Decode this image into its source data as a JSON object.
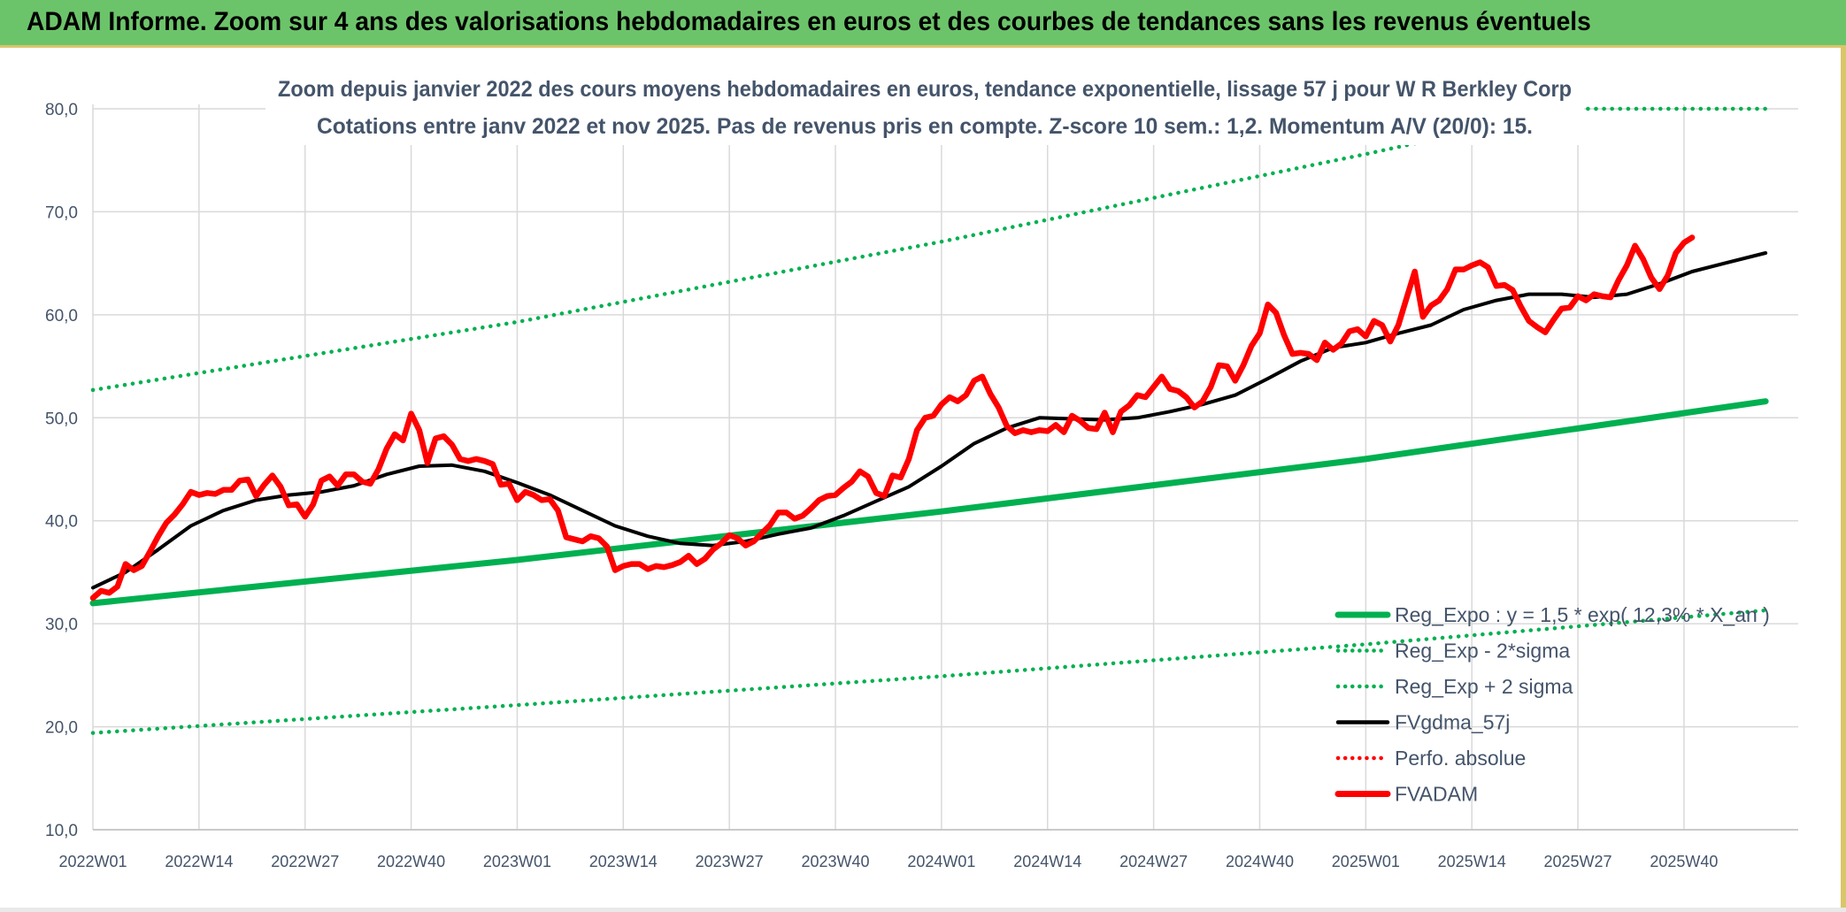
{
  "title": "ADAM Informe. Zoom sur 4 ans des valorisations hebdomadaires en euros et des courbes de tendances sans les revenus éventuels",
  "colors": {
    "banner": "#6cc46a",
    "green": "#00b050",
    "red": "#ff0000",
    "black": "#000000",
    "axis_text": "#44546a",
    "grid": "#d9d9d9"
  },
  "chart_data": {
    "type": "line",
    "subtitle_line1": "Zoom depuis janvier 2022 des cours moyens hebdomadaires en euros, tendance exponentielle, lissage 57 j pour W R Berkley Corp",
    "subtitle_line2": "Cotations entre janv 2022 et nov 2025. Pas de revenus pris en compte. Z-score 10 sem.: 1,2. Momentum A/V (20/0): 15.",
    "ylim": [
      10,
      80
    ],
    "y_ticks": [
      "10,0",
      "20,0",
      "30,0",
      "40,0",
      "50,0",
      "60,0",
      "70,0",
      "80,0"
    ],
    "y_tick_values": [
      10,
      20,
      30,
      40,
      50,
      60,
      70,
      80
    ],
    "x_ticks": [
      "2022W01",
      "2022W14",
      "2022W27",
      "2022W40",
      "2023W01",
      "2023W14",
      "2023W27",
      "2023W40",
      "2024W01",
      "2024W14",
      "2024W27",
      "2024W40",
      "2025W01",
      "2025W14",
      "2025W27",
      "2025W40"
    ],
    "x_tick_weeks": [
      0,
      13,
      26,
      39,
      52,
      65,
      78,
      91,
      104,
      117,
      130,
      143,
      156,
      169,
      182,
      195
    ],
    "grid": true,
    "legend_position": "bottom-right",
    "legend": [
      {
        "label": "Reg_Expo : y = 1,5 * exp( 12,3% * X_an )",
        "style": "solid",
        "color": "#00b050"
      },
      {
        "label": "Reg_Exp - 2*sigma",
        "style": "dotted",
        "color": "#00b050"
      },
      {
        "label": "Reg_Exp + 2 sigma",
        "style": "dotted",
        "color": "#00b050"
      },
      {
        "label": "FVgdma_57j",
        "style": "solid",
        "color": "#000000"
      },
      {
        "label": "Perfo. absolue",
        "style": "dotted",
        "color": "#ff0000"
      },
      {
        "label": "FVADAM",
        "style": "solid",
        "color": "#ff0000"
      }
    ],
    "series": [
      {
        "name": "Reg_Expo : y = 1,5 * exp( 12,3% * X_an )",
        "style": "solid",
        "color": "#00b050",
        "points": [
          [
            0,
            32.0
          ],
          [
            52,
            36.2
          ],
          [
            104,
            40.9
          ],
          [
            156,
            46.0
          ],
          [
            205,
            51.6
          ]
        ]
      },
      {
        "name": "Reg_Exp - 2*sigma",
        "style": "dotted",
        "color": "#00b050",
        "points": [
          [
            0,
            19.4
          ],
          [
            52,
            22.1
          ],
          [
            104,
            24.9
          ],
          [
            156,
            28.0
          ],
          [
            205,
            31.3
          ]
        ]
      },
      {
        "name": "Reg_Exp + 2 sigma",
        "style": "dotted",
        "color": "#00b050",
        "points": [
          [
            0,
            52.7
          ],
          [
            52,
            59.3
          ],
          [
            104,
            67.1
          ],
          [
            156,
            75.6
          ],
          [
            167,
            77.5
          ],
          [
            170,
            80.0
          ],
          [
            205,
            80.0
          ]
        ]
      },
      {
        "name": "FVgdma_57j",
        "style": "solid",
        "color": "#000000",
        "points": [
          [
            0,
            33.5
          ],
          [
            4,
            35.0
          ],
          [
            8,
            37.2
          ],
          [
            12,
            39.5
          ],
          [
            16,
            41.0
          ],
          [
            20,
            42.0
          ],
          [
            24,
            42.5
          ],
          [
            28,
            42.8
          ],
          [
            32,
            43.4
          ],
          [
            36,
            44.5
          ],
          [
            40,
            45.3
          ],
          [
            44,
            45.4
          ],
          [
            48,
            44.8
          ],
          [
            52,
            43.7
          ],
          [
            56,
            42.5
          ],
          [
            60,
            41.0
          ],
          [
            64,
            39.5
          ],
          [
            68,
            38.5
          ],
          [
            72,
            37.8
          ],
          [
            76,
            37.6
          ],
          [
            80,
            38.0
          ],
          [
            84,
            38.7
          ],
          [
            88,
            39.3
          ],
          [
            92,
            40.5
          ],
          [
            96,
            41.9
          ],
          [
            100,
            43.3
          ],
          [
            104,
            45.3
          ],
          [
            108,
            47.5
          ],
          [
            112,
            49.0
          ],
          [
            116,
            50.0
          ],
          [
            120,
            49.9
          ],
          [
            124,
            49.8
          ],
          [
            128,
            50.0
          ],
          [
            132,
            50.6
          ],
          [
            136,
            51.3
          ],
          [
            140,
            52.2
          ],
          [
            144,
            53.8
          ],
          [
            148,
            55.5
          ],
          [
            152,
            56.8
          ],
          [
            156,
            57.3
          ],
          [
            160,
            58.2
          ],
          [
            164,
            59.0
          ],
          [
            168,
            60.5
          ],
          [
            172,
            61.4
          ],
          [
            176,
            62.0
          ],
          [
            180,
            62.0
          ],
          [
            184,
            61.7
          ],
          [
            188,
            62.0
          ],
          [
            192,
            63.0
          ],
          [
            196,
            64.2
          ],
          [
            200,
            65.0
          ],
          [
            205,
            66.0
          ]
        ]
      },
      {
        "name": "FVADAM",
        "style": "solid",
        "color": "#ff0000",
        "points": [
          [
            0,
            32.5
          ],
          [
            1,
            33.2
          ],
          [
            2,
            33.0
          ],
          [
            3,
            33.6
          ],
          [
            4,
            35.8
          ],
          [
            5,
            35.2
          ],
          [
            6,
            35.6
          ],
          [
            7,
            37.0
          ],
          [
            8,
            38.5
          ],
          [
            9,
            39.8
          ],
          [
            10,
            40.6
          ],
          [
            11,
            41.6
          ],
          [
            12,
            42.8
          ],
          [
            13,
            42.5
          ],
          [
            14,
            42.7
          ],
          [
            15,
            42.6
          ],
          [
            16,
            43.0
          ],
          [
            17,
            43.0
          ],
          [
            18,
            43.9
          ],
          [
            19,
            44.0
          ],
          [
            20,
            42.4
          ],
          [
            21,
            43.5
          ],
          [
            22,
            44.4
          ],
          [
            23,
            43.3
          ],
          [
            24,
            41.5
          ],
          [
            25,
            41.6
          ],
          [
            26,
            40.4
          ],
          [
            27,
            41.6
          ],
          [
            28,
            43.9
          ],
          [
            29,
            44.3
          ],
          [
            30,
            43.4
          ],
          [
            31,
            44.5
          ],
          [
            32,
            44.5
          ],
          [
            33,
            43.8
          ],
          [
            34,
            43.6
          ],
          [
            35,
            45.0
          ],
          [
            36,
            47.0
          ],
          [
            37,
            48.4
          ],
          [
            38,
            47.8
          ],
          [
            39,
            50.4
          ],
          [
            40,
            48.8
          ],
          [
            41,
            45.6
          ],
          [
            42,
            48.0
          ],
          [
            43,
            48.2
          ],
          [
            44,
            47.4
          ],
          [
            45,
            46.0
          ],
          [
            46,
            45.8
          ],
          [
            47,
            46.0
          ],
          [
            48,
            45.8
          ],
          [
            49,
            45.5
          ],
          [
            50,
            43.5
          ],
          [
            51,
            43.6
          ],
          [
            52,
            42.0
          ],
          [
            53,
            42.8
          ],
          [
            54,
            42.5
          ],
          [
            55,
            42.0
          ],
          [
            56,
            42.1
          ],
          [
            57,
            41.0
          ],
          [
            58,
            38.4
          ],
          [
            59,
            38.2
          ],
          [
            60,
            38.0
          ],
          [
            61,
            38.5
          ],
          [
            62,
            38.3
          ],
          [
            63,
            37.5
          ],
          [
            64,
            35.2
          ],
          [
            65,
            35.6
          ],
          [
            66,
            35.8
          ],
          [
            67,
            35.8
          ],
          [
            68,
            35.3
          ],
          [
            69,
            35.6
          ],
          [
            70,
            35.5
          ],
          [
            71,
            35.7
          ],
          [
            72,
            36.0
          ],
          [
            73,
            36.6
          ],
          [
            74,
            35.8
          ],
          [
            75,
            36.3
          ],
          [
            76,
            37.2
          ],
          [
            77,
            37.8
          ],
          [
            78,
            38.6
          ],
          [
            79,
            38.3
          ],
          [
            80,
            37.6
          ],
          [
            81,
            38.0
          ],
          [
            82,
            38.8
          ],
          [
            83,
            39.6
          ],
          [
            84,
            40.8
          ],
          [
            85,
            40.8
          ],
          [
            86,
            40.2
          ],
          [
            87,
            40.5
          ],
          [
            88,
            41.2
          ],
          [
            89,
            42.0
          ],
          [
            90,
            42.4
          ],
          [
            91,
            42.5
          ],
          [
            92,
            43.2
          ],
          [
            93,
            43.8
          ],
          [
            94,
            44.8
          ],
          [
            95,
            44.3
          ],
          [
            96,
            42.7
          ],
          [
            97,
            42.4
          ],
          [
            98,
            44.4
          ],
          [
            99,
            44.2
          ],
          [
            100,
            46.0
          ],
          [
            101,
            48.8
          ],
          [
            102,
            50.0
          ],
          [
            103,
            50.2
          ],
          [
            104,
            51.3
          ],
          [
            105,
            52.0
          ],
          [
            106,
            51.6
          ],
          [
            107,
            52.2
          ],
          [
            108,
            53.6
          ],
          [
            109,
            54.0
          ],
          [
            110,
            52.3
          ],
          [
            111,
            51.0
          ],
          [
            112,
            49.2
          ],
          [
            113,
            48.5
          ],
          [
            114,
            48.8
          ],
          [
            115,
            48.6
          ],
          [
            116,
            48.8
          ],
          [
            117,
            48.7
          ],
          [
            118,
            49.3
          ],
          [
            119,
            48.6
          ],
          [
            120,
            50.2
          ],
          [
            121,
            49.7
          ],
          [
            122,
            49.0
          ],
          [
            123,
            48.9
          ],
          [
            124,
            50.5
          ],
          [
            125,
            48.6
          ],
          [
            126,
            50.6
          ],
          [
            127,
            51.2
          ],
          [
            128,
            52.2
          ],
          [
            129,
            52.0
          ],
          [
            130,
            53.0
          ],
          [
            131,
            54.0
          ],
          [
            132,
            52.8
          ],
          [
            133,
            52.6
          ],
          [
            134,
            52.0
          ],
          [
            135,
            51.0
          ],
          [
            136,
            51.6
          ],
          [
            137,
            53.0
          ],
          [
            138,
            55.1
          ],
          [
            139,
            55.0
          ],
          [
            140,
            53.6
          ],
          [
            141,
            55.1
          ],
          [
            142,
            57.0
          ],
          [
            143,
            58.2
          ],
          [
            144,
            61.0
          ],
          [
            145,
            60.2
          ],
          [
            146,
            58.0
          ],
          [
            147,
            56.2
          ],
          [
            148,
            56.3
          ],
          [
            149,
            56.2
          ],
          [
            150,
            55.6
          ],
          [
            151,
            57.3
          ],
          [
            152,
            56.6
          ],
          [
            153,
            57.2
          ],
          [
            154,
            58.4
          ],
          [
            155,
            58.6
          ],
          [
            156,
            57.9
          ],
          [
            157,
            59.4
          ],
          [
            158,
            59.0
          ],
          [
            159,
            57.4
          ],
          [
            160,
            59.0
          ],
          [
            161,
            61.6
          ],
          [
            162,
            64.2
          ],
          [
            163,
            59.8
          ],
          [
            164,
            60.9
          ],
          [
            165,
            61.4
          ],
          [
            166,
            62.5
          ],
          [
            167,
            64.4
          ],
          [
            168,
            64.4
          ],
          [
            169,
            64.8
          ],
          [
            170,
            65.1
          ],
          [
            171,
            64.6
          ],
          [
            172,
            62.8
          ],
          [
            173,
            62.9
          ],
          [
            174,
            62.4
          ],
          [
            175,
            60.8
          ],
          [
            176,
            59.4
          ],
          [
            177,
            58.8
          ],
          [
            178,
            58.3
          ],
          [
            179,
            59.5
          ],
          [
            180,
            60.6
          ],
          [
            181,
            60.7
          ],
          [
            182,
            61.8
          ],
          [
            183,
            61.4
          ],
          [
            184,
            62.0
          ],
          [
            185,
            61.8
          ],
          [
            186,
            61.7
          ],
          [
            187,
            63.4
          ],
          [
            188,
            64.8
          ],
          [
            189,
            66.7
          ],
          [
            190,
            65.4
          ],
          [
            191,
            63.6
          ],
          [
            192,
            62.5
          ],
          [
            193,
            63.8
          ],
          [
            194,
            66.0
          ],
          [
            195,
            67.0
          ],
          [
            196,
            67.5
          ]
        ]
      }
    ]
  }
}
